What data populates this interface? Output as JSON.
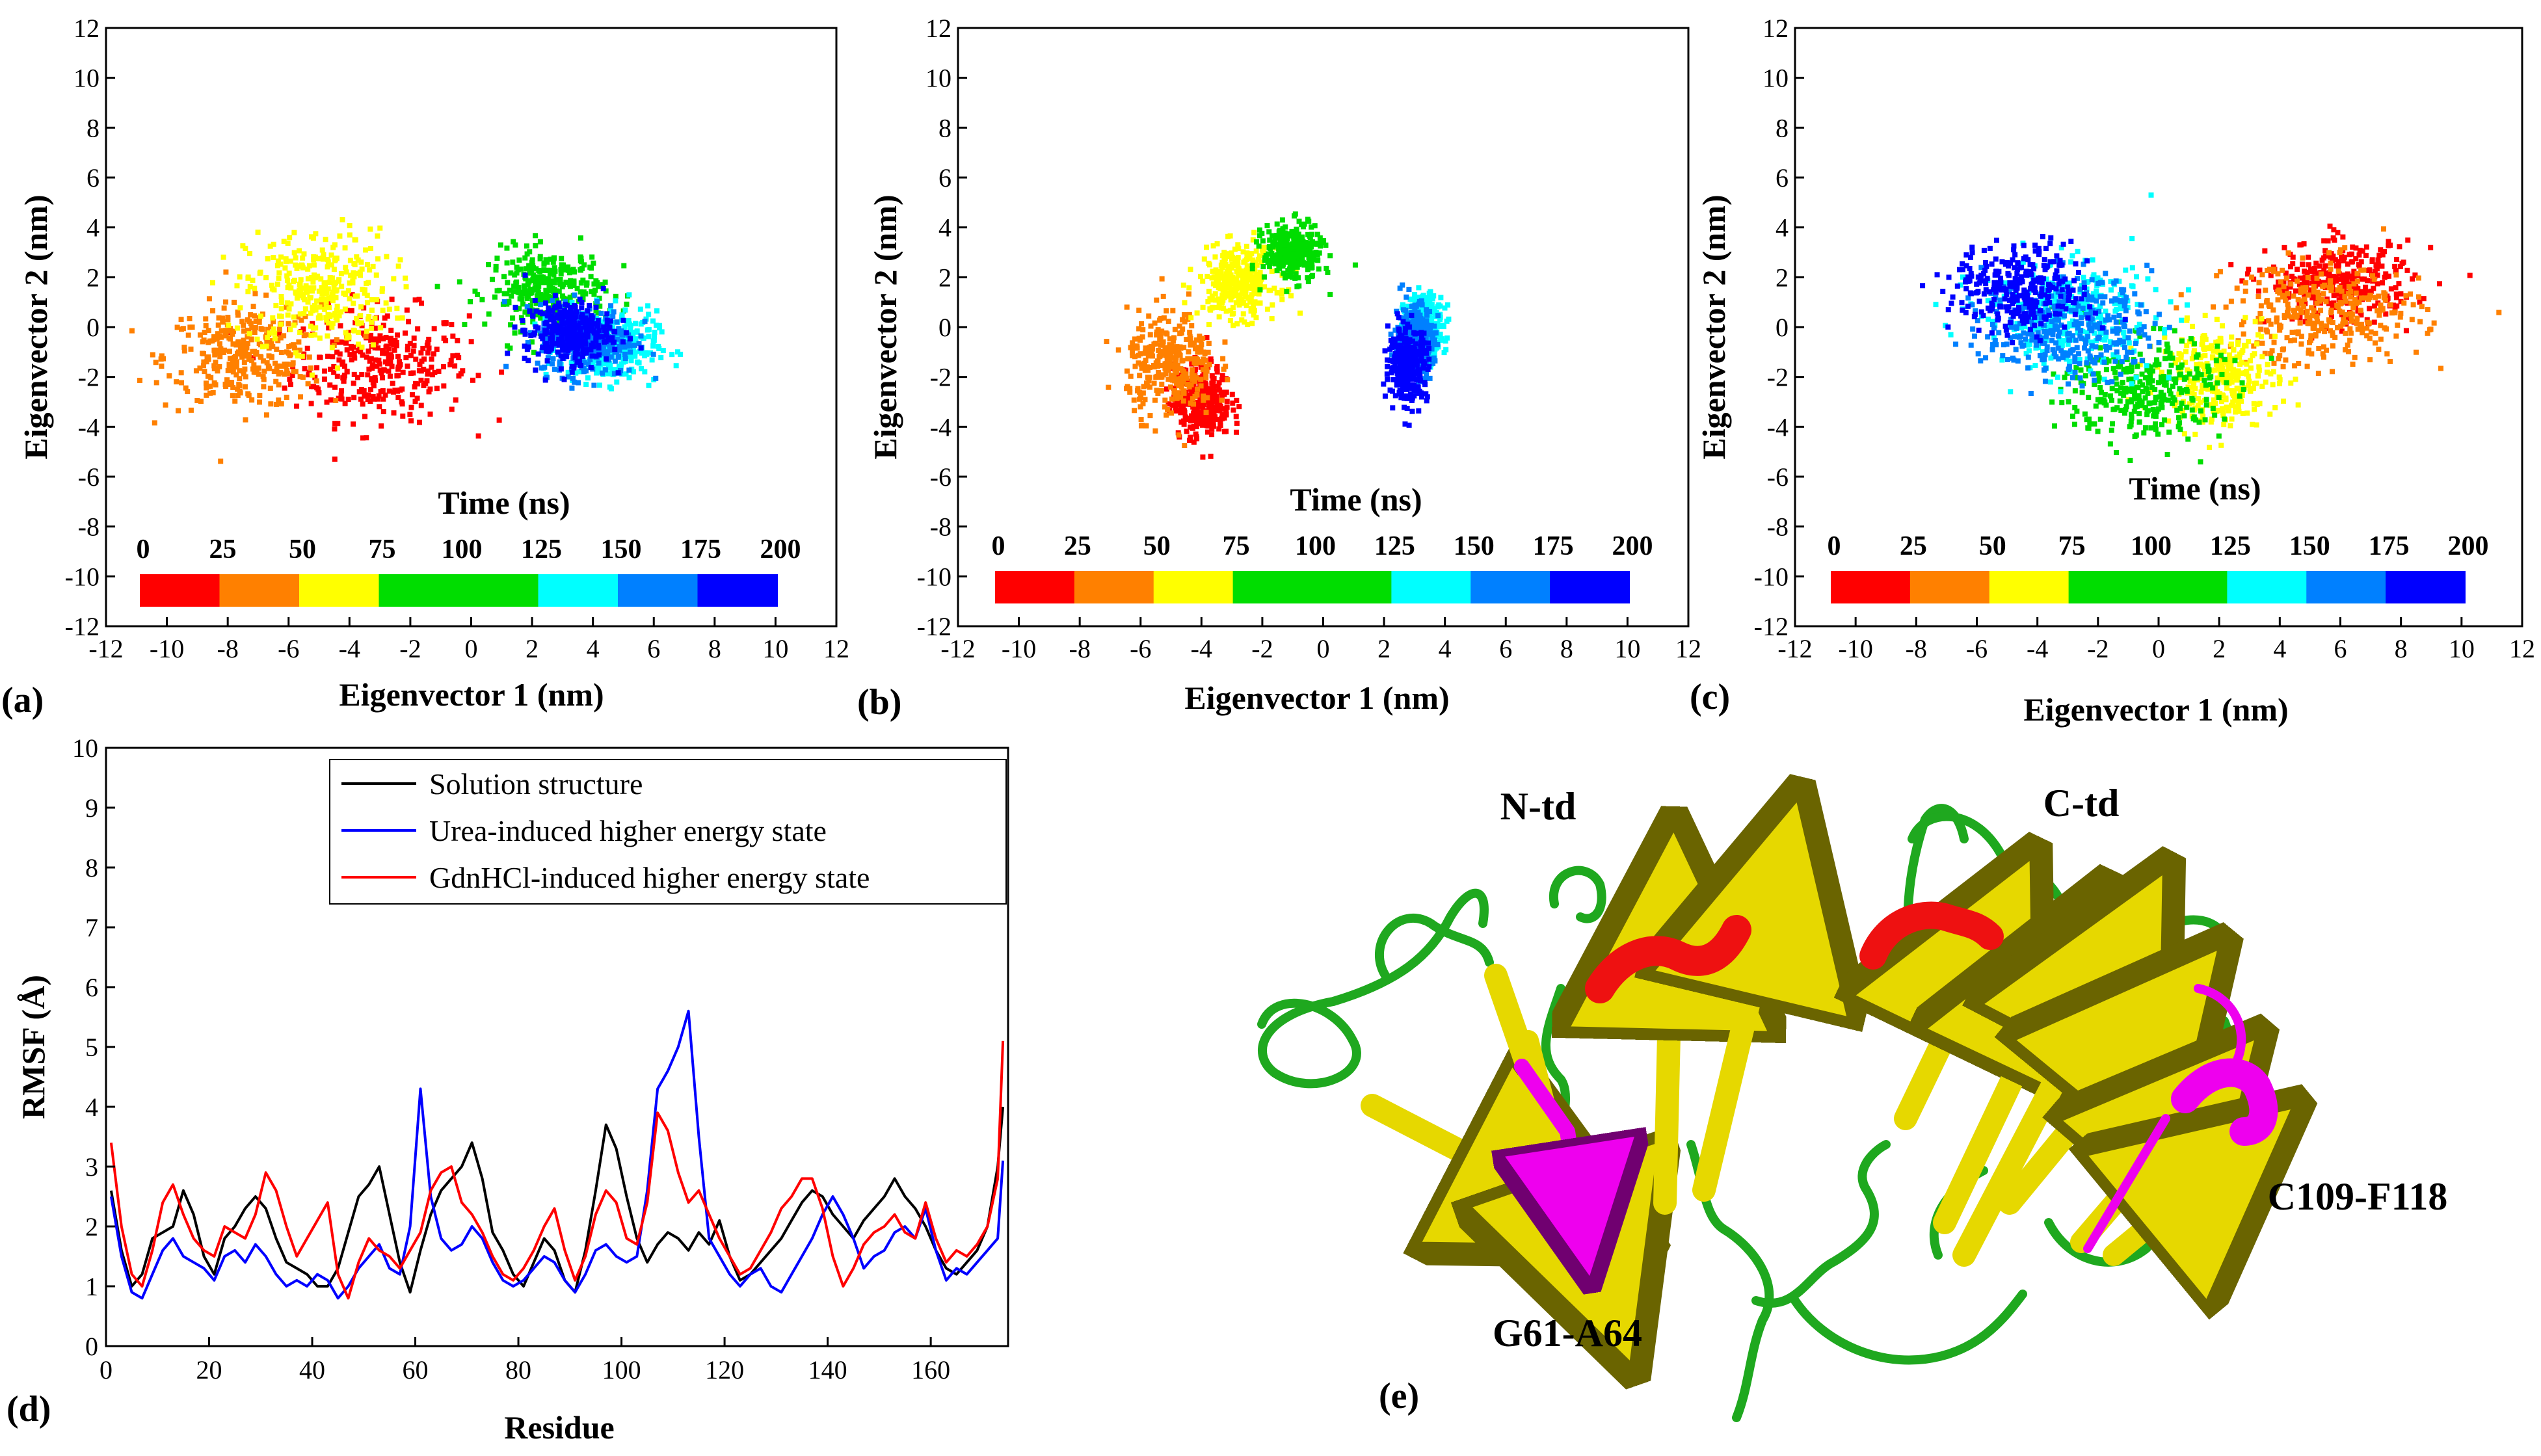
{
  "panel_labels": [
    "(a)",
    "(b)",
    "(c)",
    "(d)",
    "(e)"
  ],
  "pca_axes": {
    "xlabel": "Eigenvector 1 (nm)",
    "ylabel": "Eigenvector 2 (nm)",
    "xlim": [
      -12,
      12
    ],
    "ylim": [
      -12,
      12
    ],
    "xticks": [
      "-12",
      "-10",
      "-8",
      "-6",
      "-4",
      "-2",
      "0",
      "2",
      "4",
      "6",
      "8",
      "10",
      "12"
    ],
    "yticks": [
      "-12",
      "-10",
      "-8",
      "-6",
      "-4",
      "-2",
      "0",
      "2",
      "4",
      "6",
      "8",
      "10",
      "12"
    ]
  },
  "colorbar": {
    "title": "Time (ns)",
    "ticks": [
      "0",
      "25",
      "50",
      "75",
      "100",
      "125",
      "150",
      "175",
      "200"
    ],
    "colors": [
      "#ff0000",
      "#ff8000",
      "#ffff00",
      "#00dd00",
      "#00dd00",
      "#00ffff",
      "#0080ff",
      "#0000ff"
    ]
  },
  "chart_data": [
    {
      "type": "scatter",
      "panel": "(a)",
      "title": "",
      "xlabel": "Eigenvector 1 (nm)",
      "ylabel": "Eigenvector 2 (nm)",
      "xlim": [
        -12,
        12
      ],
      "ylim": [
        -12,
        12
      ],
      "series": [
        {
          "name": "0-25 ns",
          "color": "#ff0000",
          "center": [
            -3.0,
            -1.5
          ],
          "spread": [
            1.8,
            1.4
          ]
        },
        {
          "name": "25-50 ns",
          "color": "#ff8000",
          "center": [
            -7.5,
            -1.2
          ],
          "spread": [
            1.6,
            1.3
          ]
        },
        {
          "name": "50-75 ns",
          "color": "#ffff00",
          "center": [
            -5.0,
            1.5
          ],
          "spread": [
            1.5,
            1.5
          ]
        },
        {
          "name": "75-125 ns",
          "color": "#00dd00",
          "center": [
            2.5,
            1.5
          ],
          "spread": [
            1.2,
            1.0
          ]
        },
        {
          "name": "125-150 ns",
          "color": "#00ffff",
          "center": [
            4.5,
            -0.8
          ],
          "spread": [
            1.0,
            0.9
          ]
        },
        {
          "name": "150-175 ns",
          "color": "#0080ff",
          "center": [
            3.8,
            -0.5
          ],
          "spread": [
            1.0,
            0.9
          ]
        },
        {
          "name": "175-200 ns",
          "color": "#0000ff",
          "center": [
            3.2,
            -0.2
          ],
          "spread": [
            0.9,
            0.8
          ]
        }
      ]
    },
    {
      "type": "scatter",
      "panel": "(b)",
      "title": "",
      "xlabel": "Eigenvector 1 (nm)",
      "ylabel": "Eigenvector 2 (nm)",
      "xlim": [
        -12,
        12
      ],
      "ylim": [
        -12,
        12
      ],
      "series": [
        {
          "name": "0-25 ns",
          "color": "#ff0000",
          "center": [
            -4.0,
            -3.0
          ],
          "spread": [
            0.6,
            0.9
          ]
        },
        {
          "name": "25-50 ns",
          "color": "#ff8000",
          "center": [
            -5.0,
            -1.5
          ],
          "spread": [
            0.9,
            1.3
          ]
        },
        {
          "name": "50-75 ns",
          "color": "#ffff00",
          "center": [
            -2.8,
            1.8
          ],
          "spread": [
            0.8,
            0.9
          ]
        },
        {
          "name": "75-125 ns",
          "color": "#00dd00",
          "center": [
            -1.0,
            3.0
          ],
          "spread": [
            0.6,
            0.7
          ]
        },
        {
          "name": "125-150 ns",
          "color": "#00ffff",
          "center": [
            3.3,
            0.0
          ],
          "spread": [
            0.4,
            0.8
          ]
        },
        {
          "name": "150-175 ns",
          "color": "#0080ff",
          "center": [
            3.0,
            -0.5
          ],
          "spread": [
            0.4,
            0.9
          ]
        },
        {
          "name": "175-200 ns",
          "color": "#0000ff",
          "center": [
            2.8,
            -1.5
          ],
          "spread": [
            0.4,
            0.9
          ]
        }
      ]
    },
    {
      "type": "scatter",
      "panel": "(c)",
      "title": "",
      "xlabel": "Eigenvector 1 (nm)",
      "ylabel": "Eigenvector 2 (nm)",
      "xlim": [
        -12,
        12
      ],
      "ylim": [
        -12,
        12
      ],
      "series": [
        {
          "name": "0-25 ns",
          "color": "#ff0000",
          "center": [
            6.0,
            1.8
          ],
          "spread": [
            1.5,
            1.0
          ]
        },
        {
          "name": "25-50 ns",
          "color": "#ff8000",
          "center": [
            5.5,
            0.5
          ],
          "spread": [
            2.0,
            1.3
          ]
        },
        {
          "name": "50-75 ns",
          "color": "#ffff00",
          "center": [
            2.0,
            -2.0
          ],
          "spread": [
            1.2,
            1.2
          ]
        },
        {
          "name": "75-125 ns",
          "color": "#00dd00",
          "center": [
            -0.5,
            -2.5
          ],
          "spread": [
            1.6,
            1.3
          ]
        },
        {
          "name": "125-150 ns",
          "color": "#00ffff",
          "center": [
            -3.0,
            0.5
          ],
          "spread": [
            1.8,
            1.4
          ]
        },
        {
          "name": "150-175 ns",
          "color": "#0080ff",
          "center": [
            -3.0,
            0.0
          ],
          "spread": [
            1.7,
            1.3
          ]
        },
        {
          "name": "175-200 ns",
          "color": "#0000ff",
          "center": [
            -4.5,
            1.5
          ],
          "spread": [
            1.4,
            1.1
          ]
        }
      ]
    },
    {
      "type": "line",
      "panel": "(d)",
      "title": "",
      "xlabel": "Residue",
      "ylabel": "RMSF (Å)",
      "xlim": [
        0,
        175
      ],
      "ylim": [
        0,
        10
      ],
      "xticks": [
        "0",
        "20",
        "40",
        "60",
        "80",
        "100",
        "120",
        "140",
        "160"
      ],
      "yticks": [
        "0",
        "1",
        "2",
        "3",
        "4",
        "5",
        "6",
        "7",
        "8",
        "9",
        "10"
      ],
      "legend_position": "top-right",
      "x": [
        1,
        3,
        5,
        7,
        9,
        11,
        13,
        15,
        17,
        19,
        21,
        23,
        25,
        27,
        29,
        31,
        33,
        35,
        37,
        39,
        41,
        43,
        45,
        47,
        49,
        51,
        53,
        55,
        57,
        59,
        61,
        63,
        65,
        67,
        69,
        71,
        73,
        75,
        77,
        79,
        81,
        83,
        85,
        87,
        89,
        91,
        93,
        95,
        97,
        99,
        101,
        103,
        105,
        107,
        109,
        111,
        113,
        115,
        117,
        119,
        121,
        123,
        125,
        127,
        129,
        131,
        133,
        135,
        137,
        139,
        141,
        143,
        145,
        147,
        149,
        151,
        153,
        155,
        157,
        159,
        161,
        163,
        165,
        167,
        169,
        171,
        173,
        174
      ],
      "series": [
        {
          "name": "Solution structure",
          "color": "#000000",
          "values": [
            2.6,
            1.6,
            1.0,
            1.2,
            1.8,
            1.9,
            2.0,
            2.6,
            2.2,
            1.5,
            1.2,
            1.8,
            2.0,
            2.3,
            2.5,
            2.3,
            1.8,
            1.4,
            1.3,
            1.2,
            1.0,
            1.0,
            1.3,
            1.9,
            2.5,
            2.7,
            3.0,
            2.2,
            1.4,
            0.9,
            1.6,
            2.2,
            2.6,
            2.8,
            3.0,
            3.4,
            2.8,
            1.9,
            1.6,
            1.2,
            1.0,
            1.4,
            1.8,
            1.6,
            1.1,
            0.9,
            1.6,
            2.6,
            3.7,
            3.3,
            2.5,
            1.8,
            1.4,
            1.7,
            1.9,
            1.8,
            1.6,
            1.9,
            1.7,
            2.1,
            1.5,
            1.1,
            1.2,
            1.4,
            1.6,
            1.8,
            2.1,
            2.4,
            2.6,
            2.5,
            2.2,
            2.0,
            1.8,
            2.1,
            2.3,
            2.5,
            2.8,
            2.5,
            2.3,
            2.0,
            1.6,
            1.3,
            1.2,
            1.4,
            1.6,
            2.0,
            3.0,
            4.0
          ]
        },
        {
          "name": "Urea-induced higher energy state",
          "color": "#0000ff",
          "values": [
            2.5,
            1.5,
            0.9,
            0.8,
            1.2,
            1.6,
            1.8,
            1.5,
            1.4,
            1.3,
            1.1,
            1.5,
            1.6,
            1.4,
            1.7,
            1.5,
            1.2,
            1.0,
            1.1,
            1.0,
            1.2,
            1.1,
            0.8,
            1.0,
            1.3,
            1.5,
            1.7,
            1.3,
            1.2,
            2.0,
            4.3,
            2.5,
            1.8,
            1.6,
            1.7,
            2.0,
            1.8,
            1.4,
            1.1,
            1.0,
            1.1,
            1.3,
            1.5,
            1.4,
            1.1,
            0.9,
            1.2,
            1.6,
            1.7,
            1.5,
            1.4,
            1.5,
            2.6,
            4.3,
            4.6,
            5.0,
            5.6,
            3.5,
            1.8,
            1.5,
            1.2,
            1.0,
            1.2,
            1.3,
            1.0,
            0.9,
            1.2,
            1.5,
            1.8,
            2.2,
            2.5,
            2.2,
            1.8,
            1.3,
            1.5,
            1.6,
            1.9,
            2.0,
            1.8,
            2.3,
            1.6,
            1.1,
            1.3,
            1.2,
            1.4,
            1.6,
            1.8,
            3.1
          ]
        },
        {
          "name": "GdnHCl-induced higher energy state",
          "color": "#ff0000",
          "values": [
            3.4,
            2.0,
            1.2,
            1.0,
            1.6,
            2.4,
            2.7,
            2.2,
            1.8,
            1.6,
            1.5,
            2.0,
            1.9,
            1.8,
            2.2,
            2.9,
            2.6,
            2.0,
            1.5,
            1.8,
            2.1,
            2.4,
            1.2,
            0.8,
            1.4,
            1.8,
            1.6,
            1.5,
            1.3,
            1.6,
            1.9,
            2.6,
            2.9,
            3.0,
            2.4,
            2.2,
            1.9,
            1.5,
            1.2,
            1.1,
            1.3,
            1.6,
            2.0,
            2.3,
            1.6,
            1.1,
            1.5,
            2.2,
            2.6,
            2.4,
            1.8,
            1.7,
            2.4,
            3.9,
            3.6,
            2.9,
            2.4,
            2.6,
            2.2,
            1.8,
            1.5,
            1.2,
            1.3,
            1.6,
            1.9,
            2.3,
            2.5,
            2.8,
            2.8,
            2.3,
            1.5,
            1.0,
            1.3,
            1.7,
            1.9,
            2.0,
            2.2,
            1.9,
            1.8,
            2.4,
            1.8,
            1.4,
            1.6,
            1.5,
            1.7,
            2.0,
            2.8,
            5.1
          ]
        }
      ]
    }
  ],
  "structure": {
    "labels": [
      "N-td",
      "C-td",
      "G61-A64",
      "C109-F118"
    ],
    "colors": {
      "loop": "#1fa81f",
      "sheet": "#e6d800",
      "helix": "#ee1111",
      "highlight": "#ee00ee"
    }
  }
}
